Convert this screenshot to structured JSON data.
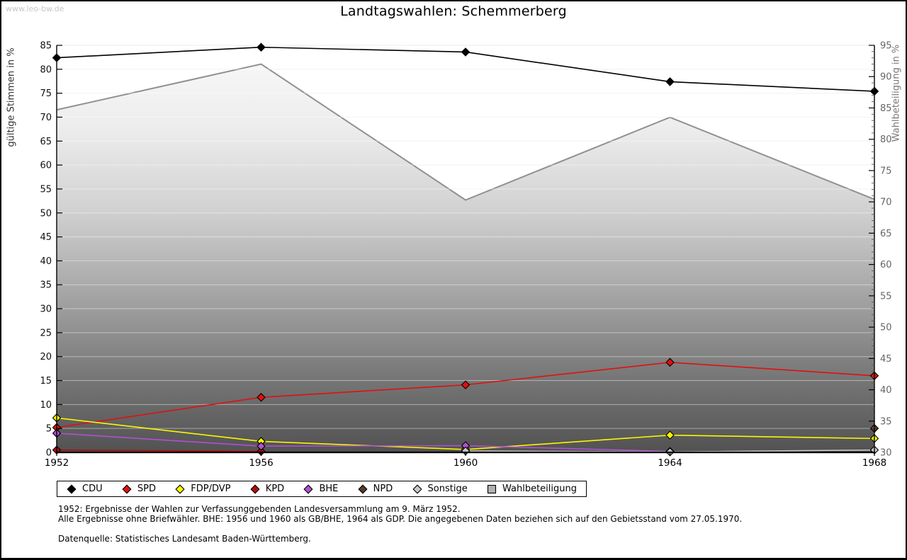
{
  "page": {
    "watermark": "www.leo-bw.de",
    "title": "Landtagswahlen: Schemmerberg"
  },
  "footnotes": {
    "line1": "1952: Ergebnisse der Wahlen zur Verfassunggebenden Landesversammlung am 9. März 1952.",
    "line2": "Alle Ergebnisse ohne Briefwähler. BHE: 1956 und 1960 als GB/BHE, 1964 als GDP. Die angegebenen Daten beziehen sich auf den Gebietsstand vom 27.05.1970.",
    "line3": "Datenquelle: Statistisches Landesamt Baden-Württemberg."
  },
  "chart_data": {
    "type": "line",
    "title": "Landtagswahlen: Schemmerberg",
    "x": [
      "1952",
      "1956",
      "1960",
      "1964",
      "1968"
    ],
    "left_axis": {
      "label": "gültige Stimmen in %",
      "min": 0,
      "max": 85,
      "tick_step": 5
    },
    "right_axis": {
      "label": "Wahlbeteiligung in %",
      "min": 30,
      "max": 95,
      "tick_step": 5,
      "minor_tick_step": 1
    },
    "grid": true,
    "legend_position": "bottom",
    "series": [
      {
        "name": "CDU",
        "axis": "left",
        "style": "line",
        "color": "#000000",
        "values": [
          82.4,
          84.6,
          83.6,
          77.4,
          75.4
        ]
      },
      {
        "name": "SPD",
        "axis": "left",
        "style": "line",
        "color": "#e01010",
        "values": [
          5.2,
          11.5,
          14.1,
          18.8,
          16.0
        ]
      },
      {
        "name": "FDP/DVP",
        "axis": "left",
        "style": "line",
        "color": "#f8f800",
        "values": [
          7.2,
          2.3,
          0.6,
          3.6,
          2.9
        ]
      },
      {
        "name": "KPD",
        "axis": "left",
        "style": "line",
        "color": "#b40a0a",
        "values": [
          0.5,
          0.2,
          null,
          null,
          null
        ]
      },
      {
        "name": "BHE",
        "axis": "left",
        "style": "line",
        "color": "#b050d0",
        "values": [
          4.0,
          1.3,
          1.4,
          0.2,
          null
        ]
      },
      {
        "name": "NPD",
        "axis": "left",
        "style": "line",
        "color": "#5a3a28",
        "values": [
          null,
          null,
          null,
          null,
          5.0
        ]
      },
      {
        "name": "Sonstige",
        "axis": "left",
        "style": "line",
        "color": "#c8c8c8",
        "values": [
          null,
          null,
          0.3,
          0.1,
          0.5
        ]
      },
      {
        "name": "Wahlbeteiligung",
        "axis": "right",
        "style": "area",
        "color": "#909090",
        "fill_top": "#f9f9f9",
        "fill_bottom": "#525252",
        "values": [
          84.7,
          92.0,
          70.3,
          83.5,
          70.4
        ]
      }
    ]
  }
}
